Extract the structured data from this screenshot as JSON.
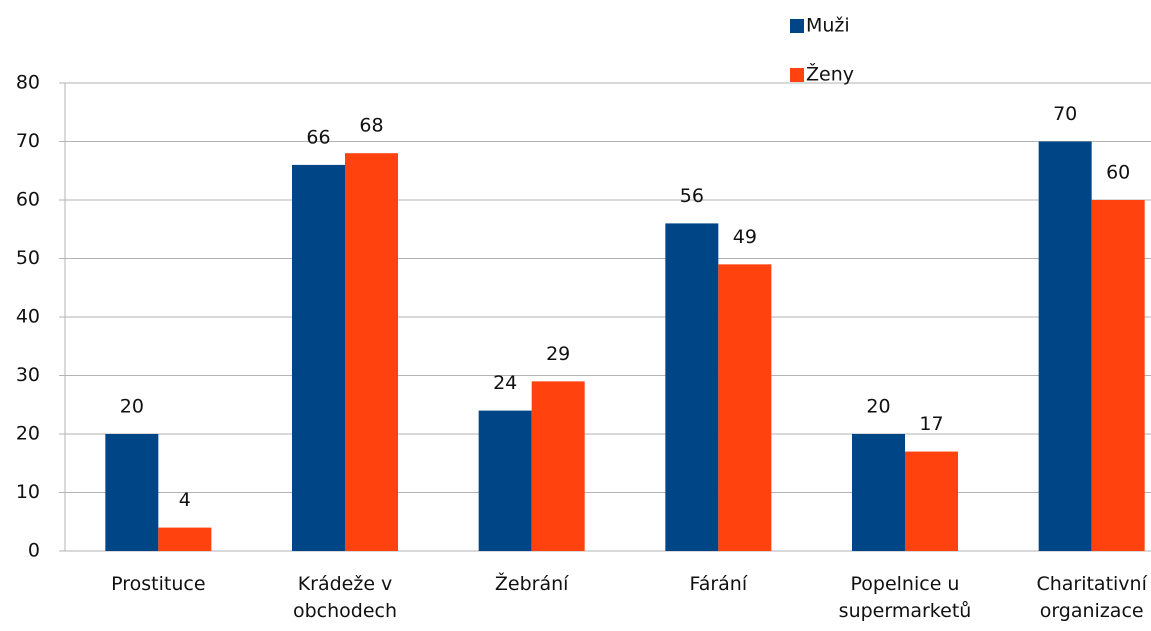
{
  "chart_data": {
    "type": "bar",
    "categories": [
      "Prostituce",
      "Krádeže v obchodech",
      "Žebrání",
      "Fárání",
      "Popelnice u supermarketů",
      "Charitativní organizace"
    ],
    "series": [
      {
        "name": "Muži",
        "color": "#004586",
        "values": [
          20,
          66,
          24,
          56,
          20,
          70
        ]
      },
      {
        "name": "Ženy",
        "color": "#ff420e",
        "values": [
          4,
          68,
          29,
          49,
          17,
          60
        ]
      }
    ],
    "ylim": [
      0,
      80
    ],
    "yticks": [
      0,
      10,
      20,
      30,
      40,
      50,
      60,
      70,
      80
    ],
    "grid": true,
    "legend": "top-right"
  }
}
